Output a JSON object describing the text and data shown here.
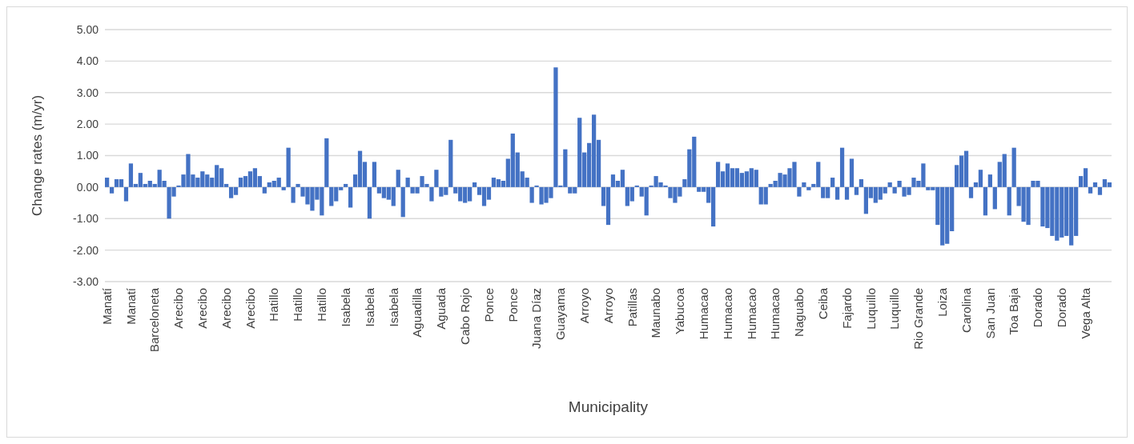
{
  "chart_data": {
    "type": "bar",
    "xlabel": "Municipality",
    "ylabel": "Change rates (m/yr)",
    "categories": [
      "Manatí",
      null,
      null,
      null,
      null,
      "Manatí",
      null,
      null,
      null,
      null,
      "Barceloneta",
      null,
      null,
      null,
      null,
      "Arecibo",
      null,
      null,
      null,
      null,
      "Arecibo",
      null,
      null,
      null,
      null,
      "Arecibo",
      null,
      null,
      null,
      null,
      "Arecibo",
      null,
      null,
      null,
      null,
      "Hatillo",
      null,
      null,
      null,
      null,
      "Hatillo",
      null,
      null,
      null,
      null,
      "Hatillo",
      null,
      null,
      null,
      null,
      "Isabela",
      null,
      null,
      null,
      null,
      "Isabela",
      null,
      null,
      null,
      null,
      "Isabela",
      null,
      null,
      null,
      null,
      "Aguadilla",
      null,
      null,
      null,
      null,
      "Aguada",
      null,
      null,
      null,
      null,
      "Cabo Rojo",
      null,
      null,
      null,
      null,
      "Ponce",
      null,
      null,
      null,
      null,
      "Ponce",
      null,
      null,
      null,
      null,
      "Juana Díaz",
      null,
      null,
      null,
      null,
      "Guayama",
      null,
      null,
      null,
      null,
      "Arroyo",
      null,
      null,
      null,
      null,
      "Arroyo",
      null,
      null,
      null,
      null,
      "Patillas",
      null,
      null,
      null,
      null,
      "Maunabo",
      null,
      null,
      null,
      null,
      "Yabucoa",
      null,
      null,
      null,
      null,
      "Humacao",
      null,
      null,
      null,
      null,
      "Humacao",
      null,
      null,
      null,
      null,
      "Humacao",
      null,
      null,
      null,
      null,
      "Humacao",
      null,
      null,
      null,
      null,
      "Naguabo",
      null,
      null,
      null,
      null,
      "Ceiba",
      null,
      null,
      null,
      null,
      "Fajardo",
      null,
      null,
      null,
      null,
      "Luquillo",
      null,
      null,
      null,
      null,
      "Luquillo",
      null,
      null,
      null,
      null,
      "Rio Grande",
      null,
      null,
      null,
      null,
      "Loiza",
      null,
      null,
      null,
      null,
      "Carolina",
      null,
      null,
      null,
      null,
      "San Juan",
      null,
      null,
      null,
      null,
      "Toa Baja",
      null,
      null,
      null,
      null,
      "Dorado",
      null,
      null,
      null,
      null,
      "Dorado",
      null,
      null,
      null,
      null,
      "Vega Alta",
      null,
      null,
      null,
      null,
      null
    ],
    "values": [
      0.3,
      -0.2,
      0.25,
      0.25,
      -0.45,
      0.75,
      0.1,
      0.45,
      0.1,
      0.2,
      0.1,
      0.55,
      0.2,
      -1.0,
      -0.3,
      0.05,
      0.4,
      1.05,
      0.4,
      0.3,
      0.5,
      0.4,
      0.3,
      0.7,
      0.6,
      0.1,
      -0.35,
      -0.25,
      0.3,
      0.35,
      0.5,
      0.6,
      0.35,
      -0.2,
      0.15,
      0.2,
      0.3,
      -0.1,
      1.25,
      -0.5,
      0.1,
      -0.3,
      -0.55,
      -0.75,
      -0.4,
      -0.9,
      1.55,
      -0.6,
      -0.45,
      -0.1,
      0.1,
      -0.65,
      0.4,
      1.15,
      0.8,
      -1.0,
      0.8,
      -0.2,
      -0.35,
      -0.4,
      -0.6,
      0.55,
      -0.95,
      0.3,
      -0.2,
      -0.2,
      0.35,
      0.1,
      -0.45,
      0.55,
      -0.3,
      -0.25,
      1.5,
      -0.2,
      -0.45,
      -0.5,
      -0.45,
      0.15,
      -0.25,
      -0.6,
      -0.4,
      0.3,
      0.25,
      0.2,
      0.9,
      1.7,
      1.1,
      0.5,
      0.3,
      -0.5,
      0.05,
      -0.55,
      -0.5,
      -0.35,
      3.8,
      0.05,
      1.2,
      -0.2,
      -0.2,
      2.2,
      1.1,
      1.4,
      2.3,
      1.5,
      -0.6,
      -1.2,
      0.4,
      0.2,
      0.55,
      -0.6,
      -0.45,
      0.05,
      -0.3,
      -0.9,
      0.05,
      0.35,
      0.15,
      0.05,
      -0.35,
      -0.5,
      -0.3,
      0.25,
      1.2,
      1.6,
      -0.15,
      -0.15,
      -0.5,
      -1.25,
      0.8,
      0.5,
      0.75,
      0.6,
      0.6,
      0.45,
      0.5,
      0.6,
      0.55,
      -0.55,
      -0.55,
      0.1,
      0.2,
      0.45,
      0.4,
      0.6,
      0.8,
      -0.3,
      0.15,
      -0.1,
      0.1,
      0.8,
      -0.35,
      -0.35,
      0.3,
      -0.4,
      1.25,
      -0.4,
      0.9,
      -0.25,
      0.25,
      -0.85,
      -0.35,
      -0.5,
      -0.4,
      -0.2,
      0.15,
      -0.2,
      0.2,
      -0.3,
      -0.25,
      0.3,
      0.2,
      0.75,
      -0.1,
      -0.1,
      -1.2,
      -1.85,
      -1.8,
      -1.4,
      0.7,
      1.0,
      1.15,
      -0.35,
      0.15,
      0.55,
      -0.9,
      0.4,
      -0.7,
      0.8,
      1.05,
      -0.9,
      1.25,
      -0.6,
      -1.1,
      -1.2,
      0.2,
      0.2,
      -1.25,
      -1.3,
      -1.55,
      -1.7,
      -1.6,
      -1.55,
      -1.85,
      -1.55,
      0.35,
      0.6,
      -0.2,
      0.15,
      -0.25,
      0.25,
      0.15
    ],
    "color": "#4472c4",
    "ylim": [
      -3,
      5
    ],
    "yticks": [
      {
        "value": -3,
        "label": "-3.00"
      },
      {
        "value": -2,
        "label": "-2.00"
      },
      {
        "value": -1,
        "label": "-1.00"
      },
      {
        "value": 0,
        "label": "0.00"
      },
      {
        "value": 1,
        "label": "1.00"
      },
      {
        "value": 2,
        "label": "2.00"
      },
      {
        "value": 3,
        "label": "3.00"
      },
      {
        "value": 4,
        "label": "4.00"
      },
      {
        "value": 5,
        "label": "5.00"
      }
    ],
    "grid": "y"
  }
}
